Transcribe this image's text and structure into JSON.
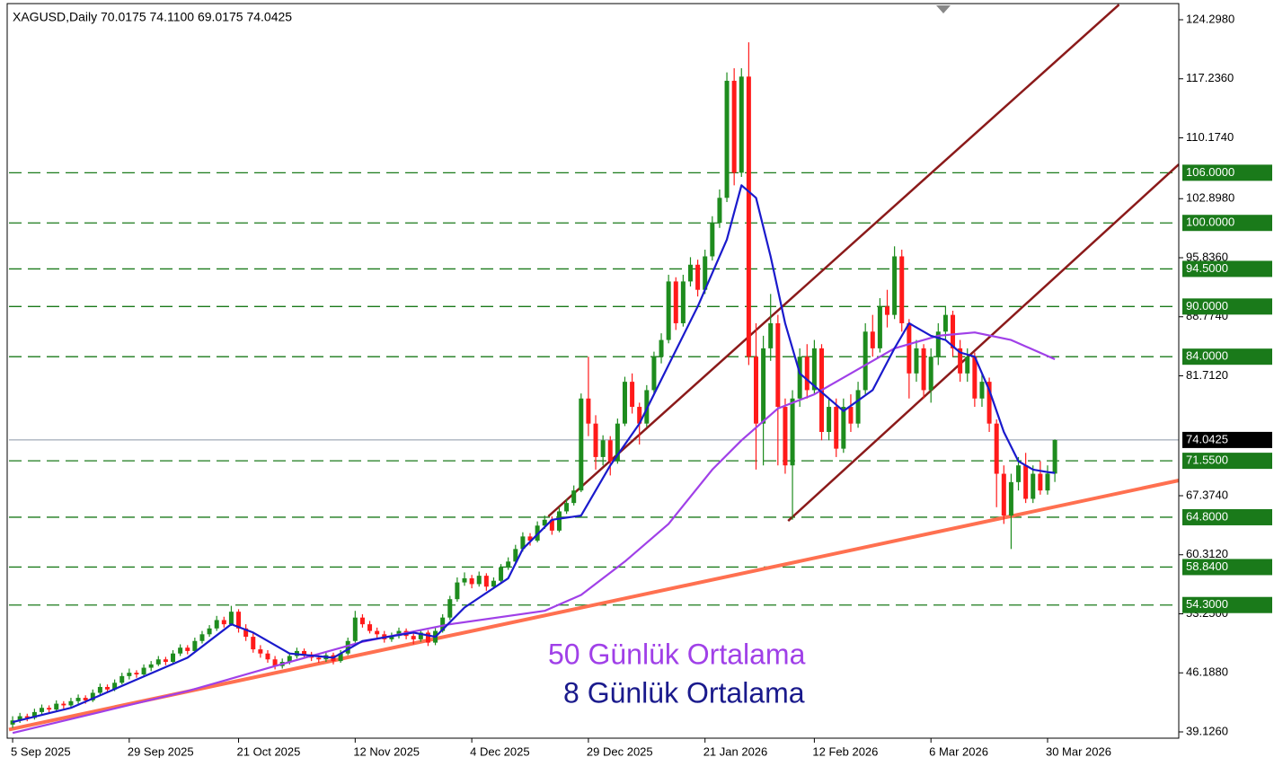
{
  "chart_data": {
    "type": "candlestick",
    "title": "XAGUSD,Daily  70.0175 74.1100 69.0175 74.0425",
    "up_color": "#1e8c1e",
    "down_color": "#ff1a1a",
    "xlim": [
      -0.5,
      160
    ],
    "ylim": [
      38.374,
      126.124
    ],
    "xticks": [
      {
        "value": 0,
        "label": "5 Sep 2025"
      },
      {
        "value": 16,
        "label": "29 Sep 2025"
      },
      {
        "value": 31,
        "label": "21 Oct 2025"
      },
      {
        "value": 47,
        "label": "12 Nov 2025"
      },
      {
        "value": 63,
        "label": "4 Dec 2025"
      },
      {
        "value": 79,
        "label": "29 Dec 2025"
      },
      {
        "value": 95,
        "label": "21 Jan 2026"
      },
      {
        "value": 110,
        "label": "12 Feb 2026"
      },
      {
        "value": 126,
        "label": "6 Mar 2026"
      },
      {
        "value": 142,
        "label": "30 Mar 2026"
      }
    ],
    "yticks": [
      {
        "value": 124.298,
        "label": "124.2980"
      },
      {
        "value": 117.236,
        "label": "117.2360"
      },
      {
        "value": 110.174,
        "label": "110.1740"
      },
      {
        "value": 102.898,
        "label": "102.8980"
      },
      {
        "value": 95.836,
        "label": "95.8360"
      },
      {
        "value": 88.774,
        "label": "88.7740"
      },
      {
        "value": 81.712,
        "label": "81.7120"
      },
      {
        "value": 67.374,
        "label": "67.3740"
      },
      {
        "value": 60.312,
        "label": "60.3120"
      },
      {
        "value": 53.25,
        "label": "53.2500"
      },
      {
        "value": 46.188,
        "label": "46.1880"
      },
      {
        "value": 39.126,
        "label": "39.1260"
      }
    ],
    "levels_color": "#1a7a1a",
    "levels": [
      {
        "value": 106,
        "label": "106.0000"
      },
      {
        "value": 100,
        "label": "100.0000"
      },
      {
        "value": 94.5,
        "label": "94.5000"
      },
      {
        "value": 90,
        "label": "90.0000"
      },
      {
        "value": 84,
        "label": "84.0000"
      },
      {
        "value": 71.55,
        "label": "71.5500"
      },
      {
        "value": 64.8,
        "label": "64.8000"
      },
      {
        "value": 58.84,
        "label": "58.8400"
      },
      {
        "value": 54.3,
        "label": "54.3000"
      }
    ],
    "last_price": {
      "value": 74.0425,
      "label": "74.0425"
    },
    "series": [
      {
        "name": "50 Günlük Ortalama",
        "color": "#a040e8",
        "x": [
          0,
          12,
          24,
          36,
          48,
          60,
          73,
          78,
          84,
          90,
          96,
          100,
          105,
          110,
          115,
          121,
          127,
          132,
          137,
          143
        ],
        "values": [
          39,
          41.5,
          44,
          47,
          49.9,
          52,
          53.6,
          55.5,
          59.5,
          64,
          70.5,
          74,
          77.8,
          79.5,
          82,
          85,
          86.5,
          86.9,
          86,
          83.7
        ]
      },
      {
        "name": "8 Günlük Ortalama",
        "color": "#1a1acc",
        "x": [
          0,
          8,
          16,
          24,
          30,
          33,
          38,
          44,
          48,
          55,
          58,
          62,
          68,
          70,
          74,
          78,
          82,
          86,
          90,
          94,
          98,
          100,
          102,
          104,
          106,
          108,
          110,
          114,
          118,
          121,
          123,
          126,
          128,
          130,
          132,
          134,
          136,
          138,
          140,
          142,
          143
        ],
        "values": [
          40.3,
          42,
          45,
          48,
          52,
          51,
          48.5,
          48,
          50,
          51,
          50.5,
          54,
          57.5,
          61,
          64.5,
          65,
          71,
          76,
          83,
          90,
          98,
          104.5,
          103,
          96,
          88,
          82,
          80.5,
          77.5,
          80,
          85,
          88,
          86.5,
          86,
          84.5,
          84,
          80,
          75,
          71.5,
          70.5,
          70.2,
          70.1
        ]
      }
    ],
    "trendlines": [
      {
        "color": "#ff7050",
        "x": [
          -0.5,
          160
        ],
        "values": [
          39.4,
          69.2
        ]
      },
      {
        "color": "#8b1a1a",
        "x": [
          73.5,
          151.8
        ],
        "values": [
          64.9,
          126.1
        ]
      },
      {
        "color": "#8b1a1a",
        "x": [
          106.4,
          160
        ],
        "values": [
          64.35,
          107.0
        ]
      }
    ],
    "candles": [
      [
        40.0,
        41.0,
        39.6,
        40.5
      ],
      [
        40.5,
        41.4,
        40.2,
        41.0
      ],
      [
        41.0,
        41.3,
        40.4,
        40.8
      ],
      [
        40.8,
        41.9,
        40.6,
        41.5
      ],
      [
        41.5,
        42.4,
        41.2,
        42.0
      ],
      [
        42.0,
        42.3,
        41.4,
        41.8
      ],
      [
        41.8,
        42.9,
        41.6,
        42.5
      ],
      [
        42.5,
        42.8,
        41.9,
        42.3
      ],
      [
        42.3,
        43.2,
        42.0,
        42.8
      ],
      [
        42.8,
        43.6,
        42.5,
        43.2
      ],
      [
        43.2,
        43.5,
        42.5,
        42.9
      ],
      [
        42.9,
        44.2,
        42.7,
        43.8
      ],
      [
        43.8,
        44.9,
        43.5,
        44.5
      ],
      [
        44.5,
        44.8,
        43.8,
        44.2
      ],
      [
        44.2,
        45.4,
        44.0,
        45.0
      ],
      [
        45.0,
        46.2,
        44.8,
        45.8
      ],
      [
        45.8,
        46.7,
        45.4,
        46.2
      ],
      [
        46.2,
        46.5,
        45.6,
        46.0
      ],
      [
        46.0,
        47.2,
        45.8,
        46.8
      ],
      [
        46.8,
        47.6,
        46.4,
        47.2
      ],
      [
        47.2,
        48.2,
        47.0,
        47.8
      ],
      [
        47.8,
        48.1,
        47.1,
        47.5
      ],
      [
        47.5,
        48.9,
        47.3,
        48.5
      ],
      [
        48.5,
        49.6,
        48.2,
        49.2
      ],
      [
        49.2,
        49.5,
        48.4,
        48.8
      ],
      [
        48.8,
        50.4,
        48.6,
        50.0
      ],
      [
        50.0,
        51.2,
        49.7,
        50.8
      ],
      [
        50.8,
        51.9,
        50.5,
        51.5
      ],
      [
        51.5,
        53.0,
        51.2,
        52.5
      ],
      [
        52.5,
        52.9,
        51.6,
        52.0
      ],
      [
        52.0,
        54.2,
        51.8,
        53.5
      ],
      [
        53.5,
        53.8,
        51.0,
        51.5
      ],
      [
        51.5,
        52.0,
        50.0,
        50.5
      ],
      [
        50.5,
        51.0,
        48.6,
        49.0
      ],
      [
        49.0,
        49.5,
        48.0,
        48.5
      ],
      [
        48.5,
        48.9,
        47.4,
        47.8
      ],
      [
        47.8,
        48.2,
        46.6,
        47.0
      ],
      [
        47.0,
        47.9,
        46.7,
        47.5
      ],
      [
        47.5,
        48.6,
        47.2,
        48.2
      ],
      [
        48.2,
        49.2,
        47.9,
        48.8
      ],
      [
        48.8,
        49.1,
        48.0,
        48.4
      ],
      [
        48.4,
        48.7,
        47.6,
        48.0
      ],
      [
        48.0,
        48.3,
        47.4,
        47.8
      ],
      [
        47.8,
        48.7,
        47.5,
        48.3
      ],
      [
        48.3,
        48.6,
        47.2,
        47.6
      ],
      [
        47.6,
        48.9,
        47.4,
        48.5
      ],
      [
        48.5,
        50.4,
        48.3,
        50.0
      ],
      [
        50.0,
        53.6,
        49.8,
        52.8
      ],
      [
        52.8,
        53.2,
        51.6,
        52.0
      ],
      [
        52.0,
        52.4,
        50.9,
        51.2
      ],
      [
        51.2,
        51.6,
        50.4,
        50.8
      ],
      [
        50.8,
        51.2,
        49.8,
        50.2
      ],
      [
        50.2,
        51.0,
        49.9,
        50.6
      ],
      [
        50.6,
        51.6,
        50.3,
        51.2
      ],
      [
        51.2,
        51.5,
        50.2,
        50.6
      ],
      [
        50.6,
        50.9,
        49.6,
        50.2
      ],
      [
        50.2,
        51.4,
        49.9,
        51.0
      ],
      [
        51.0,
        51.3,
        49.4,
        49.8
      ],
      [
        49.8,
        51.6,
        49.5,
        51.2
      ],
      [
        51.2,
        53.2,
        51.0,
        52.8
      ],
      [
        52.8,
        55.4,
        52.5,
        55.0
      ],
      [
        55.0,
        57.6,
        54.7,
        57.0
      ],
      [
        57.0,
        58.2,
        56.6,
        57.5
      ],
      [
        57.5,
        57.9,
        56.3,
        56.8
      ],
      [
        56.8,
        58.3,
        56.5,
        57.8
      ],
      [
        57.8,
        58.1,
        56.0,
        56.5
      ],
      [
        56.5,
        57.6,
        56.2,
        57.2
      ],
      [
        57.2,
        59.2,
        57.0,
        58.8
      ],
      [
        58.8,
        60.0,
        58.5,
        59.5
      ],
      [
        59.5,
        61.5,
        59.2,
        61.0
      ],
      [
        61.0,
        63.0,
        60.7,
        62.5
      ],
      [
        62.5,
        62.9,
        61.4,
        62.0
      ],
      [
        62.0,
        64.3,
        61.8,
        63.8
      ],
      [
        63.8,
        65.0,
        63.4,
        64.5
      ],
      [
        64.5,
        64.9,
        62.7,
        63.2
      ],
      [
        63.2,
        66.0,
        63.0,
        65.5
      ],
      [
        65.5,
        67.0,
        65.2,
        66.5
      ],
      [
        66.5,
        68.6,
        66.2,
        68.0
      ],
      [
        68.0,
        79.6,
        67.8,
        79.0
      ],
      [
        79.0,
        84.0,
        74.5,
        76.0
      ],
      [
        76.0,
        77.0,
        70.5,
        72.0
      ],
      [
        72.0,
        74.6,
        71.0,
        74.0
      ],
      [
        74.0,
        74.5,
        69.8,
        71.5
      ],
      [
        71.5,
        76.6,
        71.2,
        76.0
      ],
      [
        76.0,
        81.6,
        75.7,
        81.0
      ],
      [
        81.0,
        82.0,
        77.2,
        78.0
      ],
      [
        78.0,
        78.5,
        73.5,
        76.0
      ],
      [
        76.0,
        80.6,
        75.6,
        80.0
      ],
      [
        80.0,
        84.6,
        79.5,
        84.0
      ],
      [
        84.0,
        86.8,
        83.2,
        86.0
      ],
      [
        86.0,
        93.8,
        85.6,
        93.0
      ],
      [
        93.0,
        93.5,
        87.2,
        88.0
      ],
      [
        88.0,
        93.8,
        87.6,
        93.0
      ],
      [
        93.0,
        95.9,
        92.4,
        95.0
      ],
      [
        95.0,
        95.6,
        91.2,
        92.0
      ],
      [
        92.0,
        96.8,
        91.5,
        96.0
      ],
      [
        96.0,
        100.8,
        95.5,
        100.0
      ],
      [
        100.0,
        104.0,
        99.4,
        103.0
      ],
      [
        103.0,
        118.0,
        102.5,
        117.0
      ],
      [
        117.0,
        118.5,
        104.5,
        106.0
      ],
      [
        106.0,
        118.5,
        105.5,
        117.5
      ],
      [
        117.5,
        121.6,
        83.0,
        84.0
      ],
      [
        84.0,
        88.0,
        70.5,
        76.0
      ],
      [
        76.0,
        86.5,
        71.0,
        85.0
      ],
      [
        85.0,
        91.5,
        83.5,
        88.0
      ],
      [
        88.0,
        89.0,
        71.0,
        78.0
      ],
      [
        78.0,
        79.0,
        70.0,
        71.0
      ],
      [
        71.0,
        80.0,
        64.5,
        79.0
      ],
      [
        79.0,
        85.0,
        78.0,
        84.0
      ],
      [
        84.0,
        85.5,
        79.0,
        80.0
      ],
      [
        80.0,
        86.0,
        79.5,
        85.0
      ],
      [
        85.0,
        85.5,
        74.0,
        75.0
      ],
      [
        75.0,
        79.0,
        74.0,
        78.0
      ],
      [
        78.0,
        79.0,
        72.0,
        73.0
      ],
      [
        73.0,
        79.0,
        72.5,
        78.0
      ],
      [
        78.0,
        79.5,
        75.0,
        76.0
      ],
      [
        76.0,
        81.0,
        75.5,
        80.0
      ],
      [
        80.0,
        88.0,
        79.5,
        87.0
      ],
      [
        87.0,
        89.0,
        84.0,
        85.0
      ],
      [
        85.0,
        91.0,
        84.5,
        90.0
      ],
      [
        90.0,
        92.0,
        87.5,
        89.0
      ],
      [
        89.0,
        97.2,
        88.5,
        96.0
      ],
      [
        96.0,
        96.8,
        87.0,
        88.0
      ],
      [
        88.0,
        88.5,
        79.0,
        82.0
      ],
      [
        82.0,
        86.0,
        81.0,
        85.0
      ],
      [
        85.0,
        85.5,
        79.0,
        80.0
      ],
      [
        80.0,
        85.0,
        78.5,
        84.0
      ],
      [
        84.0,
        88.0,
        83.0,
        87.0
      ],
      [
        87.0,
        90.0,
        86.0,
        89.0
      ],
      [
        89.0,
        89.5,
        84.0,
        85.0
      ],
      [
        85.0,
        86.0,
        81.0,
        82.0
      ],
      [
        82.0,
        85.0,
        81.0,
        84.0
      ],
      [
        84.0,
        84.5,
        78.0,
        79.0
      ],
      [
        79.0,
        82.0,
        78.0,
        81.0
      ],
      [
        81.0,
        81.5,
        75.0,
        76.0
      ],
      [
        76.0,
        76.5,
        66.0,
        70.0
      ],
      [
        70.0,
        71.0,
        64.0,
        65.0
      ],
      [
        65.0,
        70.0,
        61.0,
        69.0
      ],
      [
        69.0,
        72.0,
        68.0,
        71.0
      ],
      [
        71.0,
        72.5,
        66.5,
        67.0
      ],
      [
        67.0,
        71.0,
        66.5,
        70.0
      ],
      [
        70.0,
        71.5,
        67.5,
        68.0
      ],
      [
        68.0,
        71.0,
        67.5,
        70.0175
      ],
      [
        70.0175,
        74.11,
        69.0175,
        74.0425
      ]
    ]
  }
}
